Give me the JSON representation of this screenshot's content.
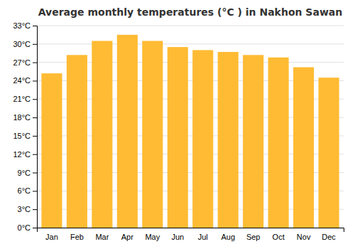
{
  "chart_data": {
    "type": "bar",
    "title": "Average monthly temperatures (°C ) in Nakhon Sawan",
    "categories": [
      "Jan",
      "Feb",
      "Mar",
      "Apr",
      "May",
      "Jun",
      "Jul",
      "Aug",
      "Sep",
      "Oct",
      "Nov",
      "Dec"
    ],
    "values": [
      25.2,
      28.2,
      30.5,
      31.5,
      30.5,
      29.5,
      29.0,
      28.7,
      28.2,
      27.8,
      26.2,
      24.5
    ],
    "color": "#FFBB33",
    "ylim": [
      0,
      33
    ],
    "yticks": [
      {
        "value": 0,
        "label": "0°C"
      },
      {
        "value": 3,
        "label": "3°C"
      },
      {
        "value": 6,
        "label": "6°C"
      },
      {
        "value": 9,
        "label": "9°C"
      },
      {
        "value": 12,
        "label": "12°C"
      },
      {
        "value": 15,
        "label": "15°C"
      },
      {
        "value": 18,
        "label": "18°C"
      },
      {
        "value": 21,
        "label": "21°C"
      },
      {
        "value": 24,
        "label": "24°C"
      },
      {
        "value": 27,
        "label": "27°C"
      },
      {
        "value": 30,
        "label": "30°C"
      },
      {
        "value": 33,
        "label": "33°C"
      }
    ],
    "grid": true
  }
}
